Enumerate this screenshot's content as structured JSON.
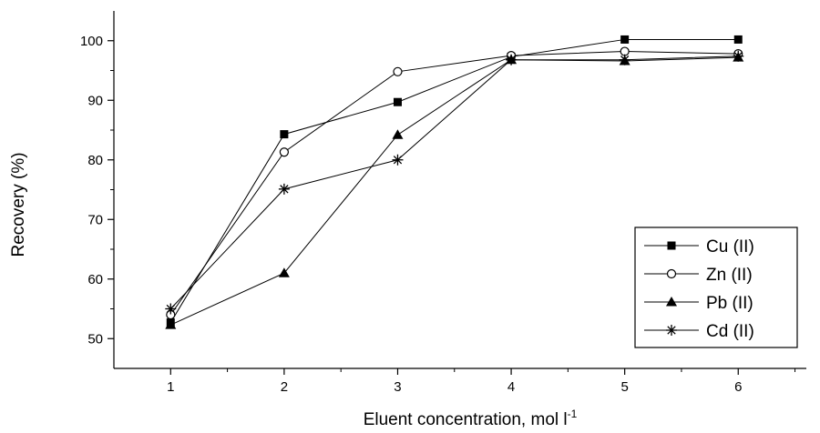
{
  "chart_data": {
    "type": "line",
    "xlabel": "Eluent concentration,  mol l",
    "xlabel_superscript": "-1",
    "ylabel": "Recovery (%)",
    "x": [
      1,
      2,
      3,
      4,
      5,
      6
    ],
    "xlim": [
      0.5,
      6.6
    ],
    "ylim": [
      45,
      105
    ],
    "x_ticks": [
      "1",
      "2",
      "3",
      "4",
      "5",
      "6"
    ],
    "y_ticks": [
      "50",
      "60",
      "70",
      "80",
      "90",
      "100"
    ],
    "grid": false,
    "legend_position": "bottom-right",
    "series": [
      {
        "name": "Cu (II)",
        "marker": "filled-square",
        "values": [
          52.7,
          84.3,
          89.7,
          97.3,
          100.2,
          100.2
        ]
      },
      {
        "name": "Zn (II)",
        "marker": "open-circle",
        "values": [
          54.0,
          81.3,
          94.8,
          97.5,
          98.2,
          97.8
        ]
      },
      {
        "name": "Pb (II)",
        "marker": "filled-triangle",
        "values": [
          52.3,
          61.0,
          84.2,
          96.8,
          96.6,
          97.2
        ]
      },
      {
        "name": "Cd (II)",
        "marker": "asterisk",
        "values": [
          55.0,
          75.1,
          80.0,
          96.8,
          96.8,
          97.4
        ]
      }
    ]
  }
}
